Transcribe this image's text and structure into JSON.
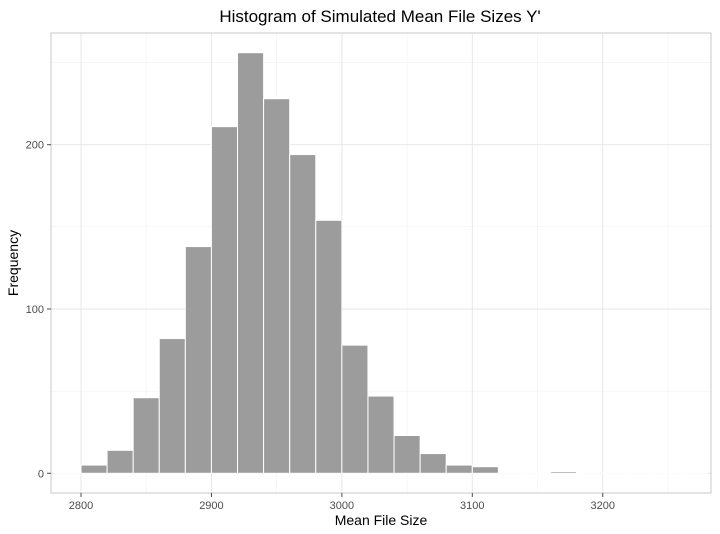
{
  "chart_data": {
    "type": "bar",
    "title": "Histogram of Simulated Mean File Sizes Y'",
    "xlabel": "Mean File Size",
    "ylabel": "Frequency",
    "xlim": [
      2777,
      3283
    ],
    "ylim": [
      -12,
      268
    ],
    "x_ticks": [
      2800,
      2900,
      3000,
      3100,
      3200
    ],
    "y_ticks": [
      0,
      100,
      200
    ],
    "bin_width": 20,
    "bins": [
      {
        "x": 2790,
        "y": 0
      },
      {
        "x": 2810,
        "y": 5
      },
      {
        "x": 2830,
        "y": 14
      },
      {
        "x": 2850,
        "y": 46
      },
      {
        "x": 2870,
        "y": 82
      },
      {
        "x": 2890,
        "y": 138
      },
      {
        "x": 2910,
        "y": 211
      },
      {
        "x": 2930,
        "y": 256
      },
      {
        "x": 2950,
        "y": 228
      },
      {
        "x": 2970,
        "y": 194
      },
      {
        "x": 2990,
        "y": 154
      },
      {
        "x": 3010,
        "y": 78
      },
      {
        "x": 3030,
        "y": 47
      },
      {
        "x": 3050,
        "y": 23
      },
      {
        "x": 3070,
        "y": 12
      },
      {
        "x": 3090,
        "y": 5
      },
      {
        "x": 3110,
        "y": 4
      },
      {
        "x": 3130,
        "y": 0
      },
      {
        "x": 3150,
        "y": 0
      },
      {
        "x": 3170,
        "y": 1
      },
      {
        "x": 3190,
        "y": 0
      },
      {
        "x": 3210,
        "y": 0
      },
      {
        "x": 3230,
        "y": 0
      },
      {
        "x": 3250,
        "y": 0
      },
      {
        "x": 3270,
        "y": 0
      }
    ],
    "bar_fill": "#9c9c9c",
    "bar_outline": "#ffffff",
    "grid": true,
    "legend": "none"
  }
}
